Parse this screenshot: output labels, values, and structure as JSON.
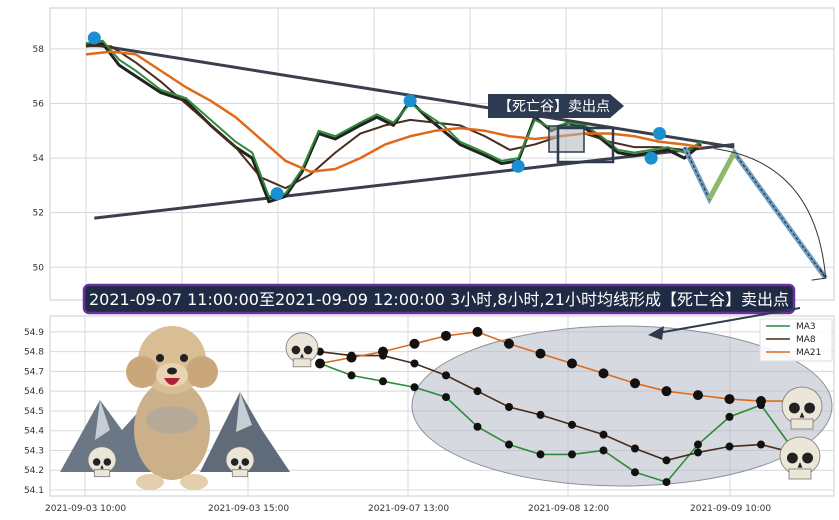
{
  "banner": {
    "text": "2021-09-07 11:00:00至2021-09-09 12:00:00 3小时,8小时,21小时均线形成【死亡谷】卖出点",
    "bg": "#1f2a44",
    "border": "#6b2fa0"
  },
  "arrow_label": "【死亡谷】卖出点",
  "colors": {
    "ma3": "#2e8b3a",
    "ma8": "#4a2c1d",
    "ma21": "#e06a1a",
    "pivot": "#1b8fd0",
    "trendline": "#3a3f4b",
    "grid": "#d8d8d8",
    "ellipse": "#9aa3ad"
  },
  "chart_data": [
    {
      "type": "line",
      "panel": "top",
      "y_ticks": [
        "50",
        "52",
        "54",
        "56",
        "58"
      ],
      "ylim": [
        48.8,
        59.5
      ],
      "n": 150,
      "series": [
        {
          "key": "ma3",
          "x": [
            0,
            4,
            8,
            12,
            18,
            24,
            30,
            36,
            40,
            44,
            48,
            52,
            56,
            60,
            66,
            70,
            74,
            78,
            82,
            86,
            90,
            96,
            100,
            104,
            108,
            112,
            116,
            120,
            124,
            128,
            132,
            136,
            140,
            144,
            148
          ],
          "values": [
            58.2,
            58.3,
            57.6,
            57.2,
            56.5,
            56.2,
            55.4,
            54.6,
            54.2,
            52.6,
            52.7,
            53.6,
            55.0,
            54.8,
            55.3,
            55.6,
            55.3,
            56.0,
            55.6,
            55.2,
            54.6,
            54.2,
            53.9,
            54.0,
            55.4,
            55.1,
            55.3,
            55.2,
            54.8,
            54.3,
            54.2,
            54.3,
            54.4,
            54.2,
            54.6
          ]
        },
        {
          "key": "ma8",
          "x": [
            0,
            6,
            12,
            18,
            24,
            30,
            36,
            42,
            48,
            54,
            60,
            66,
            72,
            78,
            84,
            90,
            96,
            102,
            108,
            114,
            120,
            126,
            132,
            138,
            144,
            148
          ],
          "values": [
            58.1,
            58.1,
            57.5,
            56.8,
            56.0,
            55.2,
            54.4,
            53.3,
            52.9,
            53.4,
            54.2,
            54.9,
            55.2,
            55.4,
            55.3,
            55.2,
            54.8,
            54.3,
            54.5,
            54.8,
            54.9,
            54.6,
            54.4,
            54.4,
            54.3,
            54.5
          ]
        },
        {
          "key": "ma21",
          "x": [
            0,
            6,
            12,
            18,
            24,
            30,
            36,
            42,
            48,
            54,
            60,
            66,
            72,
            78,
            84,
            90,
            96,
            102,
            108,
            114,
            120,
            126,
            132,
            138,
            144,
            148
          ],
          "values": [
            57.8,
            57.9,
            57.8,
            57.2,
            56.6,
            56.1,
            55.5,
            54.7,
            53.9,
            53.5,
            53.6,
            54.0,
            54.5,
            54.8,
            55.0,
            55.1,
            55.0,
            54.8,
            54.7,
            54.8,
            54.9,
            54.9,
            54.8,
            54.6,
            54.5,
            54.4
          ]
        },
        {
          "key": "price",
          "x": [
            0,
            4,
            8,
            12,
            18,
            24,
            30,
            36,
            40,
            44,
            48,
            52,
            56,
            60,
            66,
            70,
            74,
            78,
            82,
            86,
            90,
            96,
            100,
            104,
            108,
            112,
            116,
            120,
            124,
            128,
            132,
            136,
            140,
            144,
            148
          ],
          "values": [
            58.1,
            58.2,
            57.4,
            57.0,
            56.4,
            56.1,
            55.2,
            54.4,
            54.0,
            52.4,
            52.6,
            53.5,
            54.9,
            54.7,
            55.2,
            55.5,
            55.2,
            56.1,
            55.5,
            55.0,
            54.5,
            54.1,
            53.8,
            53.9,
            55.5,
            55.0,
            55.3,
            55.1,
            54.7,
            54.2,
            54.1,
            54.2,
            54.3,
            54.0,
            54.5
          ]
        }
      ],
      "pivots": [
        {
          "x": 2,
          "y": 58.4
        },
        {
          "x": 46,
          "y": 52.7
        },
        {
          "x": 78,
          "y": 56.1
        },
        {
          "x": 104,
          "y": 53.7
        },
        {
          "x": 136,
          "y": 54.0
        },
        {
          "x": 138,
          "y": 54.9
        }
      ],
      "trendlines": [
        {
          "x": [
            0,
            156
          ],
          "y": [
            58.2,
            54.4
          ]
        },
        {
          "x": [
            2,
            156
          ],
          "y": [
            51.8,
            54.5
          ]
        }
      ],
      "forecast": [
        {
          "x": 144,
          "y": 54.4
        },
        {
          "x": 150,
          "y": 52.5
        },
        {
          "x": 156,
          "y": 54.2
        },
        {
          "x": 178,
          "y": 49.6
        }
      ]
    },
    {
      "type": "line",
      "panel": "bottom",
      "title": "",
      "x_tick_labels": [
        "2021-09-03 10:00",
        "2021-09-03 15:00",
        "2021-09-07 13:00",
        "2021-09-08 12:00",
        "2021-09-09 10:00"
      ],
      "y_ticks": [
        "54.1",
        "54.2",
        "54.3",
        "54.4",
        "54.5",
        "54.6",
        "54.7",
        "54.8",
        "54.9"
      ],
      "ylim": [
        54.1,
        54.95
      ],
      "legend": [
        "MA3",
        "MA8",
        "MA21"
      ],
      "series": [
        {
          "name": "MA3",
          "key": "ma3",
          "values": [
            54.74,
            54.68,
            54.65,
            54.62,
            54.57,
            54.42,
            54.33,
            54.28,
            54.28,
            54.3,
            54.19,
            54.14,
            54.33,
            54.47,
            54.53,
            54.31
          ]
        },
        {
          "name": "MA8",
          "key": "ma8",
          "values": [
            54.8,
            54.78,
            54.78,
            54.74,
            54.68,
            54.6,
            54.52,
            54.48,
            54.43,
            54.38,
            54.31,
            54.25,
            54.29,
            54.32,
            54.33,
            54.29
          ]
        },
        {
          "name": "MA21",
          "key": "ma21",
          "values": [
            54.74,
            54.77,
            54.8,
            54.84,
            54.88,
            54.9,
            54.84,
            54.79,
            54.74,
            54.69,
            54.64,
            54.6,
            54.58,
            54.56,
            54.55,
            54.55
          ]
        }
      ]
    }
  ]
}
